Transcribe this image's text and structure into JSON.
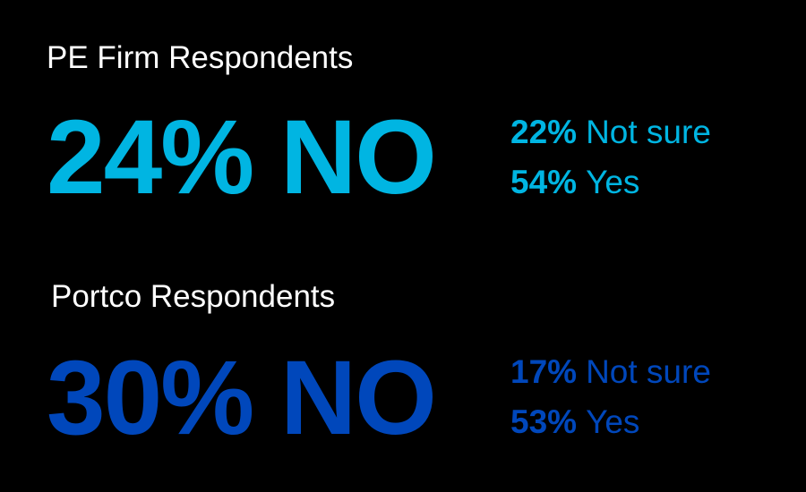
{
  "groups": [
    {
      "title": "PE Firm Respondents",
      "headline": "24% NO",
      "color": "#00b5e2",
      "items": [
        {
          "value": "22%",
          "label": "Not sure"
        },
        {
          "value": "54%",
          "label": "Yes"
        }
      ]
    },
    {
      "title": "Portco Respondents",
      "headline": "30% NO",
      "color": "#0047bb",
      "items": [
        {
          "value": "17%",
          "label": "Not sure"
        },
        {
          "value": "53%",
          "label": "Yes"
        }
      ]
    }
  ]
}
